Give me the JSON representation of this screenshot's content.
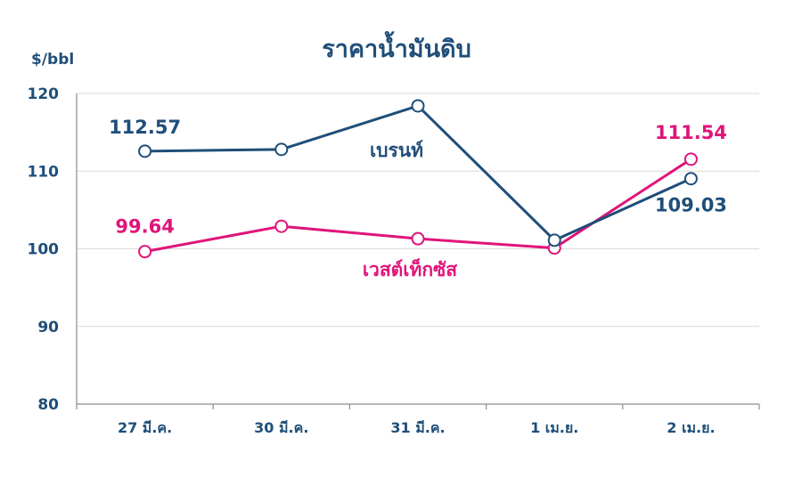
{
  "chart_data": {
    "type": "line",
    "title": "ราคาน้ำมันดิบ",
    "ylabel": "$/bbl",
    "xlabel": "",
    "categories": [
      "27 มี.ค.",
      "30 มี.ค.",
      "31 มี.ค.",
      "1 เม.ย.",
      "2 เม.ย."
    ],
    "ylim": [
      80,
      120
    ],
    "yticks": [
      80,
      90,
      100,
      110,
      120
    ],
    "grid": true,
    "series": [
      {
        "name": "เบรนท์",
        "color": "#1f4e79",
        "values": [
          112.57,
          112.8,
          118.4,
          101.1,
          109.03
        ],
        "data_labels": [
          {
            "index": 0,
            "text": "112.57"
          },
          {
            "index": 4,
            "text": "109.03"
          }
        ]
      },
      {
        "name": "เวสต์เท็กซัส",
        "color": "#e0147a",
        "values": [
          99.64,
          102.9,
          101.3,
          100.1,
          111.54
        ],
        "data_labels": [
          {
            "index": 0,
            "text": "99.64"
          },
          {
            "index": 4,
            "text": "111.54"
          }
        ]
      }
    ]
  }
}
